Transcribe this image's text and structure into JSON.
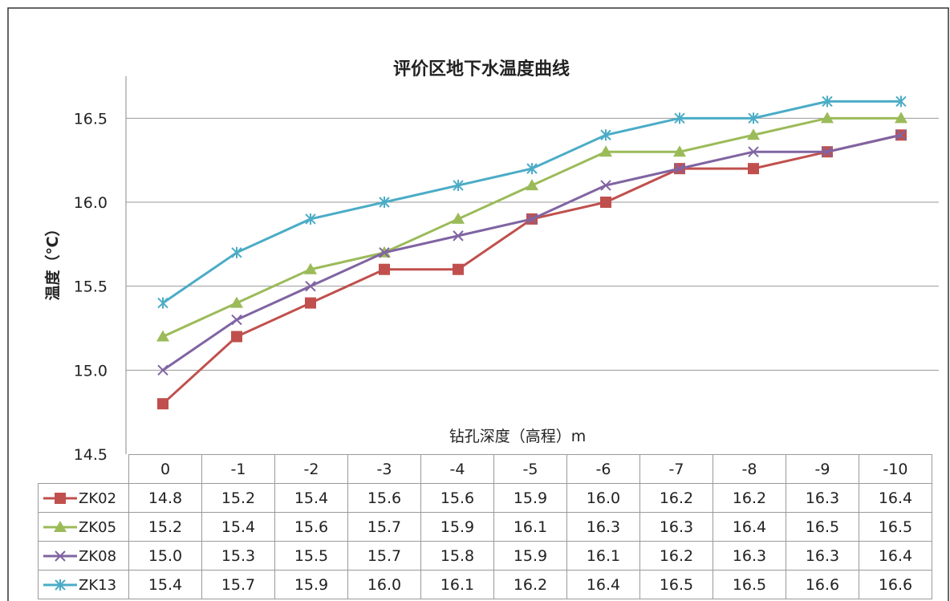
{
  "chart_data": {
    "type": "line",
    "title": "评价区地下水温度曲线",
    "ylabel": "温度（℃）",
    "xlabel": "钻孔深度（高程）m",
    "categories": [
      "0",
      "-1",
      "-2",
      "-3",
      "-4",
      "-5",
      "-6",
      "-7",
      "-8",
      "-9",
      "-10"
    ],
    "ylim": [
      14.5,
      16.75
    ],
    "yticks": [
      "14.5",
      "15.0",
      "15.5",
      "16.0",
      "16.5"
    ],
    "grid": true,
    "legend": "data-table",
    "series": [
      {
        "name": "ZK02",
        "marker": "square",
        "color": "#c0504d",
        "values": [
          14.8,
          15.2,
          15.4,
          15.6,
          15.6,
          15.9,
          16.0,
          16.2,
          16.2,
          16.3,
          16.4
        ],
        "labels": [
          "14.8",
          "15.2",
          "15.4",
          "15.6",
          "15.6",
          "15.9",
          "16.0",
          "16.2",
          "16.2",
          "16.3",
          "16.4"
        ]
      },
      {
        "name": "ZK05",
        "marker": "triangle",
        "color": "#9bbb59",
        "values": [
          15.2,
          15.4,
          15.6,
          15.7,
          15.9,
          16.1,
          16.3,
          16.3,
          16.4,
          16.5,
          16.5
        ],
        "labels": [
          "15.2",
          "15.4",
          "15.6",
          "15.7",
          "15.9",
          "16.1",
          "16.3",
          "16.3",
          "16.4",
          "16.5",
          "16.5"
        ]
      },
      {
        "name": "ZK08",
        "marker": "x",
        "color": "#8064a2",
        "values": [
          15.0,
          15.3,
          15.5,
          15.7,
          15.8,
          15.9,
          16.1,
          16.2,
          16.3,
          16.3,
          16.4
        ],
        "labels": [
          "15.0",
          "15.3",
          "15.5",
          "15.7",
          "15.8",
          "15.9",
          "16.1",
          "16.2",
          "16.3",
          "16.3",
          "16.4"
        ]
      },
      {
        "name": "ZK13",
        "marker": "star",
        "color": "#4bacc6",
        "values": [
          15.4,
          15.7,
          15.9,
          16.0,
          16.1,
          16.2,
          16.4,
          16.5,
          16.5,
          16.6,
          16.6
        ],
        "labels": [
          "15.4",
          "15.7",
          "15.9",
          "16.0",
          "16.1",
          "16.2",
          "16.4",
          "16.5",
          "16.5",
          "16.6",
          "16.6"
        ]
      }
    ]
  }
}
